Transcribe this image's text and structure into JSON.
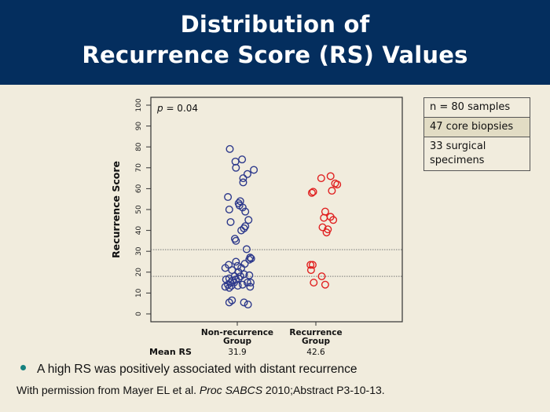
{
  "header": {
    "title_line1": "Distribution of",
    "title_line2": "Recurrence Score (RS) Values"
  },
  "colors": {
    "header_bg": "#042e5e",
    "background": "#f1ecdd",
    "non_recurrence": "#2e3a8c",
    "recurrence": "#e02020",
    "bullet": "#15817f"
  },
  "infobox": {
    "rows": [
      "n = 80 samples",
      "47 core biopsies",
      "33 surgical specimens"
    ]
  },
  "chart_data": {
    "type": "scatter",
    "title": "",
    "ylabel": "Recurrence Score",
    "xlabel": "",
    "ylim": [
      0,
      100
    ],
    "yticks": [
      0,
      10,
      20,
      30,
      40,
      50,
      60,
      70,
      80,
      90,
      100
    ],
    "annotation": "p = 0.04",
    "reference_lines": [
      30.8,
      18
    ],
    "categories": [
      "Non-recurrence Group",
      "Recurrence Group"
    ],
    "category_labels": [
      [
        "Non-recurrence",
        "Group"
      ],
      [
        "Recurrence",
        "Group"
      ]
    ],
    "mean_label": "Mean RS",
    "means": [
      "31.9",
      "42.6"
    ],
    "series": [
      {
        "name": "Non-recurrence Group",
        "points": [
          [
            -0.28,
            79
          ],
          [
            -0.07,
            73
          ],
          [
            0.18,
            74
          ],
          [
            -0.05,
            70
          ],
          [
            0.62,
            69
          ],
          [
            0.38,
            67
          ],
          [
            0.22,
            65
          ],
          [
            0.22,
            63
          ],
          [
            -0.35,
            56
          ],
          [
            0.11,
            54
          ],
          [
            0.05,
            53
          ],
          [
            0.08,
            52
          ],
          [
            0.2,
            51
          ],
          [
            -0.3,
            50
          ],
          [
            0.3,
            49
          ],
          [
            0.42,
            45
          ],
          [
            -0.25,
            44
          ],
          [
            0.3,
            42
          ],
          [
            0.25,
            41
          ],
          [
            0.15,
            40
          ],
          [
            -0.09,
            36
          ],
          [
            -0.05,
            35
          ],
          [
            0.35,
            31
          ],
          [
            0.48,
            27
          ],
          [
            0.52,
            26.5
          ],
          [
            0.45,
            26
          ],
          [
            -0.05,
            25
          ],
          [
            0.28,
            24
          ],
          [
            -0.32,
            23.5
          ],
          [
            0.01,
            23
          ],
          [
            0.15,
            22
          ],
          [
            -0.45,
            22
          ],
          [
            -0.2,
            21
          ],
          [
            0.05,
            20
          ],
          [
            0.25,
            19
          ],
          [
            0.45,
            18.5
          ],
          [
            -0.1,
            18
          ],
          [
            0.12,
            18
          ],
          [
            -0.3,
            17
          ],
          [
            -0.42,
            16.5
          ],
          [
            -0.18,
            16
          ],
          [
            -0.05,
            16.5
          ],
          [
            0.05,
            17
          ],
          [
            0.38,
            15
          ],
          [
            0.5,
            15
          ],
          [
            -0.25,
            15
          ],
          [
            -0.12,
            15
          ],
          [
            0.2,
            14
          ],
          [
            -0.35,
            14
          ],
          [
            -0.22,
            13.5
          ],
          [
            0.02,
            13.5
          ],
          [
            0.48,
            13
          ],
          [
            -0.45,
            13
          ],
          [
            -0.3,
            12.5
          ],
          [
            -0.3,
            5.5
          ],
          [
            -0.2,
            6.5
          ],
          [
            0.25,
            5.5
          ],
          [
            0.4,
            4.5
          ]
        ]
      },
      {
        "name": "Recurrence Group",
        "points": [
          [
            0.55,
            66
          ],
          [
            0.2,
            65
          ],
          [
            0.72,
            62.5
          ],
          [
            0.8,
            62
          ],
          [
            0.6,
            59
          ],
          [
            -0.15,
            58
          ],
          [
            -0.1,
            58.5
          ],
          [
            0.35,
            49
          ],
          [
            0.3,
            46
          ],
          [
            0.55,
            46.5
          ],
          [
            0.65,
            45
          ],
          [
            0.25,
            41.5
          ],
          [
            0.45,
            40.5
          ],
          [
            0.4,
            39
          ],
          [
            -0.2,
            23.5
          ],
          [
            -0.12,
            23.5
          ],
          [
            -0.18,
            21
          ],
          [
            0.22,
            18
          ],
          [
            -0.08,
            15
          ],
          [
            0.35,
            14
          ]
        ]
      }
    ]
  },
  "bullet_text": "A high RS was positively associated with distant recurrence",
  "credit": {
    "prefix": "With permission from Mayer EL et al. ",
    "journal": "Proc SABCS",
    "suffix": " 2010;Abstract P3-10-13."
  }
}
